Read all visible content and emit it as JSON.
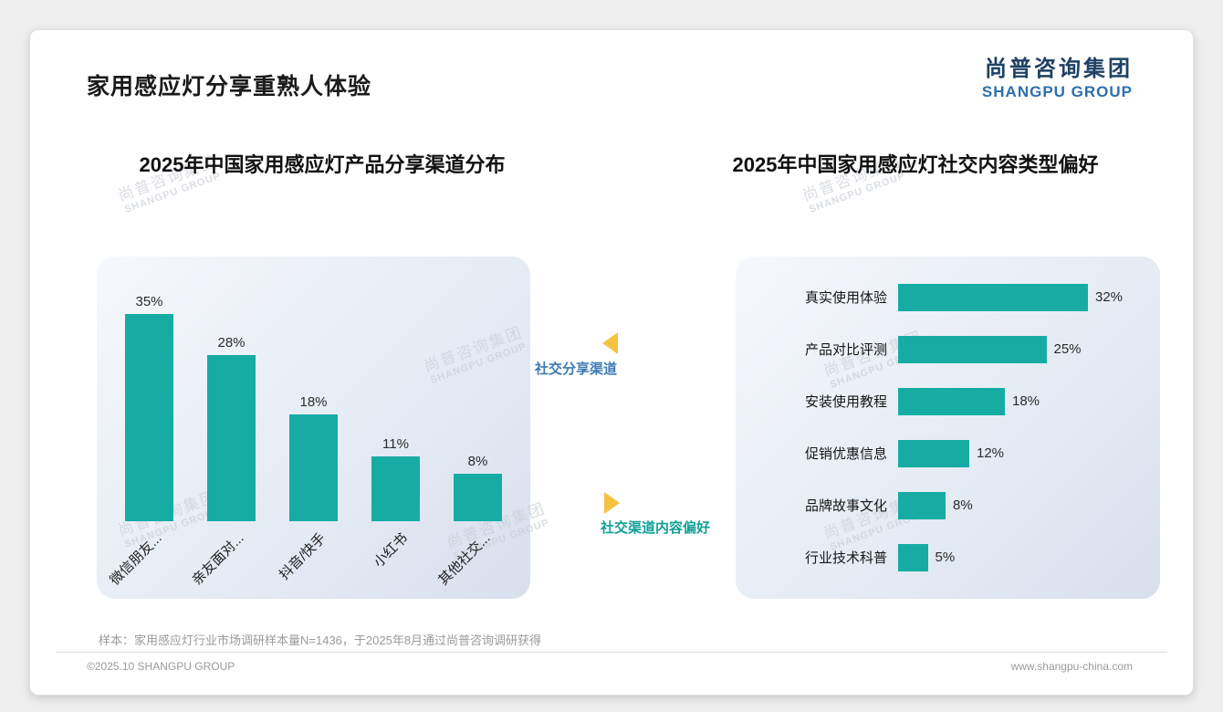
{
  "slide": {
    "title": "家用感应灯分享重熟人体验",
    "logo_cn": "尚普咨询集团",
    "logo_en": "SHANGPU GROUP",
    "watermark_cn": "尚普咨询集团",
    "watermark_en": "SHANGPU GROUP",
    "sample_note": "样本：家用感应灯行业市场调研样本量N=1436，于2025年8月通过尚普咨询调研获得",
    "footer_left": "©2025.10 SHANGPU GROUP",
    "footer_right": "www.shangpu-china.com"
  },
  "annotations": {
    "flow_label_top": "社交分享渠道",
    "flow_label_bottom": "社交渠道内容偏好"
  },
  "colors": {
    "bar_teal": "#16aca4",
    "arrow_gold": "#f5c242",
    "flow_label_blue": "#3d7ab3",
    "flow_label_teal": "#12a098",
    "logo_navy": "#1e4165",
    "logo_blue": "#2d6fad"
  },
  "chart_data": [
    {
      "type": "bar",
      "orientation": "vertical",
      "title": "2025年中国家用感应灯产品分享渠道分布",
      "categories": [
        "微信朋友...",
        "亲友面对...",
        "抖音/快手",
        "小红书",
        "其他社交..."
      ],
      "values": [
        35,
        28,
        18,
        11,
        8
      ],
      "unit": "%",
      "bar_color": "#16aca4",
      "ylim": [
        0,
        40
      ],
      "grid": false,
      "data_labels": "above bars"
    },
    {
      "type": "bar",
      "orientation": "horizontal",
      "title": "2025年中国家用感应灯社交内容类型偏好",
      "categories": [
        "真实使用体验",
        "产品对比评测",
        "安装使用教程",
        "促销优惠信息",
        "品牌故事文化",
        "行业技术科普"
      ],
      "values": [
        32,
        25,
        18,
        12,
        8,
        5
      ],
      "unit": "%",
      "bar_color": "#16aca4",
      "xlim": [
        0,
        35
      ],
      "grid": false,
      "data_labels": "right of bars"
    }
  ]
}
